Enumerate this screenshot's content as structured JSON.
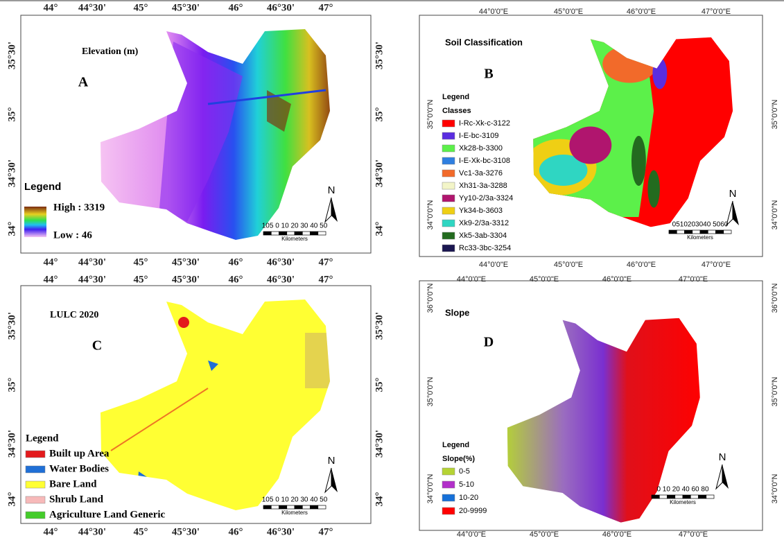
{
  "panels": [
    {
      "letter": "A",
      "title": "Elevation (m)",
      "lon_labels": [
        "44°",
        "44°30'",
        "45°",
        "45°30'",
        "46°",
        "46°30'",
        "47°"
      ],
      "lat_labels": [
        "35°30'",
        "35°",
        "34°30'",
        "34°"
      ],
      "legend": {
        "title": "Legend",
        "high": "High : 3319",
        "low": "Low : 46"
      },
      "north": "N",
      "scale_labels": "105 0  10 20 30 40 50",
      "scale_unit": "Kilometers"
    },
    {
      "letter": "B",
      "title": "Soil Classification",
      "lon_labels": [
        "44°0'0\"E",
        "45°0'0\"E",
        "46°0'0\"E",
        "47°0'0\"E"
      ],
      "lat_labels": [
        "35°0'0\"N",
        "34°0'0\"N"
      ],
      "legend": {
        "title": "Legend",
        "subtitle": "Classes",
        "items": [
          {
            "label": "I-Rc-Xk-c-3122",
            "color": "#ff0000"
          },
          {
            "label": "I-E-bc-3109",
            "color": "#5a2de0"
          },
          {
            "label": "Xk28-b-3300",
            "color": "#5cf04a"
          },
          {
            "label": "I-E-Xk-bc-3108",
            "color": "#2f7fe0"
          },
          {
            "label": "Vc1-3a-3276",
            "color": "#f26a2a"
          },
          {
            "label": "Xh31-3a-3288",
            "color": "#f3f5c8"
          },
          {
            "label": "Yy10-2/3a-3324",
            "color": "#b0156e"
          },
          {
            "label": "Yk34-b-3603",
            "color": "#efcf14"
          },
          {
            "label": "Xk9-2/3a-3312",
            "color": "#2fd6c2"
          },
          {
            "label": "Xk5-3ab-3304",
            "color": "#236b1f"
          },
          {
            "label": "Rc33-3bc-3254",
            "color": "#1a1650"
          }
        ]
      },
      "north": "N",
      "scale_labels": "0510203040 5060",
      "scale_unit": "Kilometers"
    },
    {
      "letter": "C",
      "title": "LULC 2020",
      "lon_labels": [
        "44°",
        "44°30'",
        "45°",
        "45°30'",
        "46°",
        "46°30'",
        "47°"
      ],
      "lat_labels": [
        "35°30'",
        "35°",
        "34°30'",
        "34°"
      ],
      "legend": {
        "title": "Legend",
        "items": [
          {
            "label": "Built up Area",
            "color": "#e31a1c"
          },
          {
            "label": "Water Bodies",
            "color": "#1f6fd6"
          },
          {
            "label": "Bare Land",
            "color": "#ffff33"
          },
          {
            "label": "Shrub Land",
            "color": "#f7b9b9"
          },
          {
            "label": "Agriculture Land Generic",
            "color": "#44cc2a"
          }
        ]
      },
      "north": "N",
      "scale_labels": "105 0  10 20 30 40 50",
      "scale_unit": "Kilometers"
    },
    {
      "letter": "D",
      "title": "Slope",
      "lon_labels": [
        "44°0'0\"E",
        "45°0'0\"E",
        "46°0'0\"E",
        "47°0'0\"E"
      ],
      "lat_labels": [
        "36°0'0\"N",
        "35°0'0\"N",
        "34°0'0\"N"
      ],
      "legend": {
        "title": "Legend",
        "subtitle": "Slope(%)",
        "items": [
          {
            "label": "0-5",
            "color": "#b5d334"
          },
          {
            "label": "5-10",
            "color": "#b22fc9"
          },
          {
            "label": "10-20",
            "color": "#1670d8"
          },
          {
            "label": "20-9999",
            "color": "#ff0000"
          }
        ]
      },
      "north": "N",
      "scale_labels": "0 10 20   40   60   80",
      "scale_unit": "Kilometers"
    }
  ]
}
